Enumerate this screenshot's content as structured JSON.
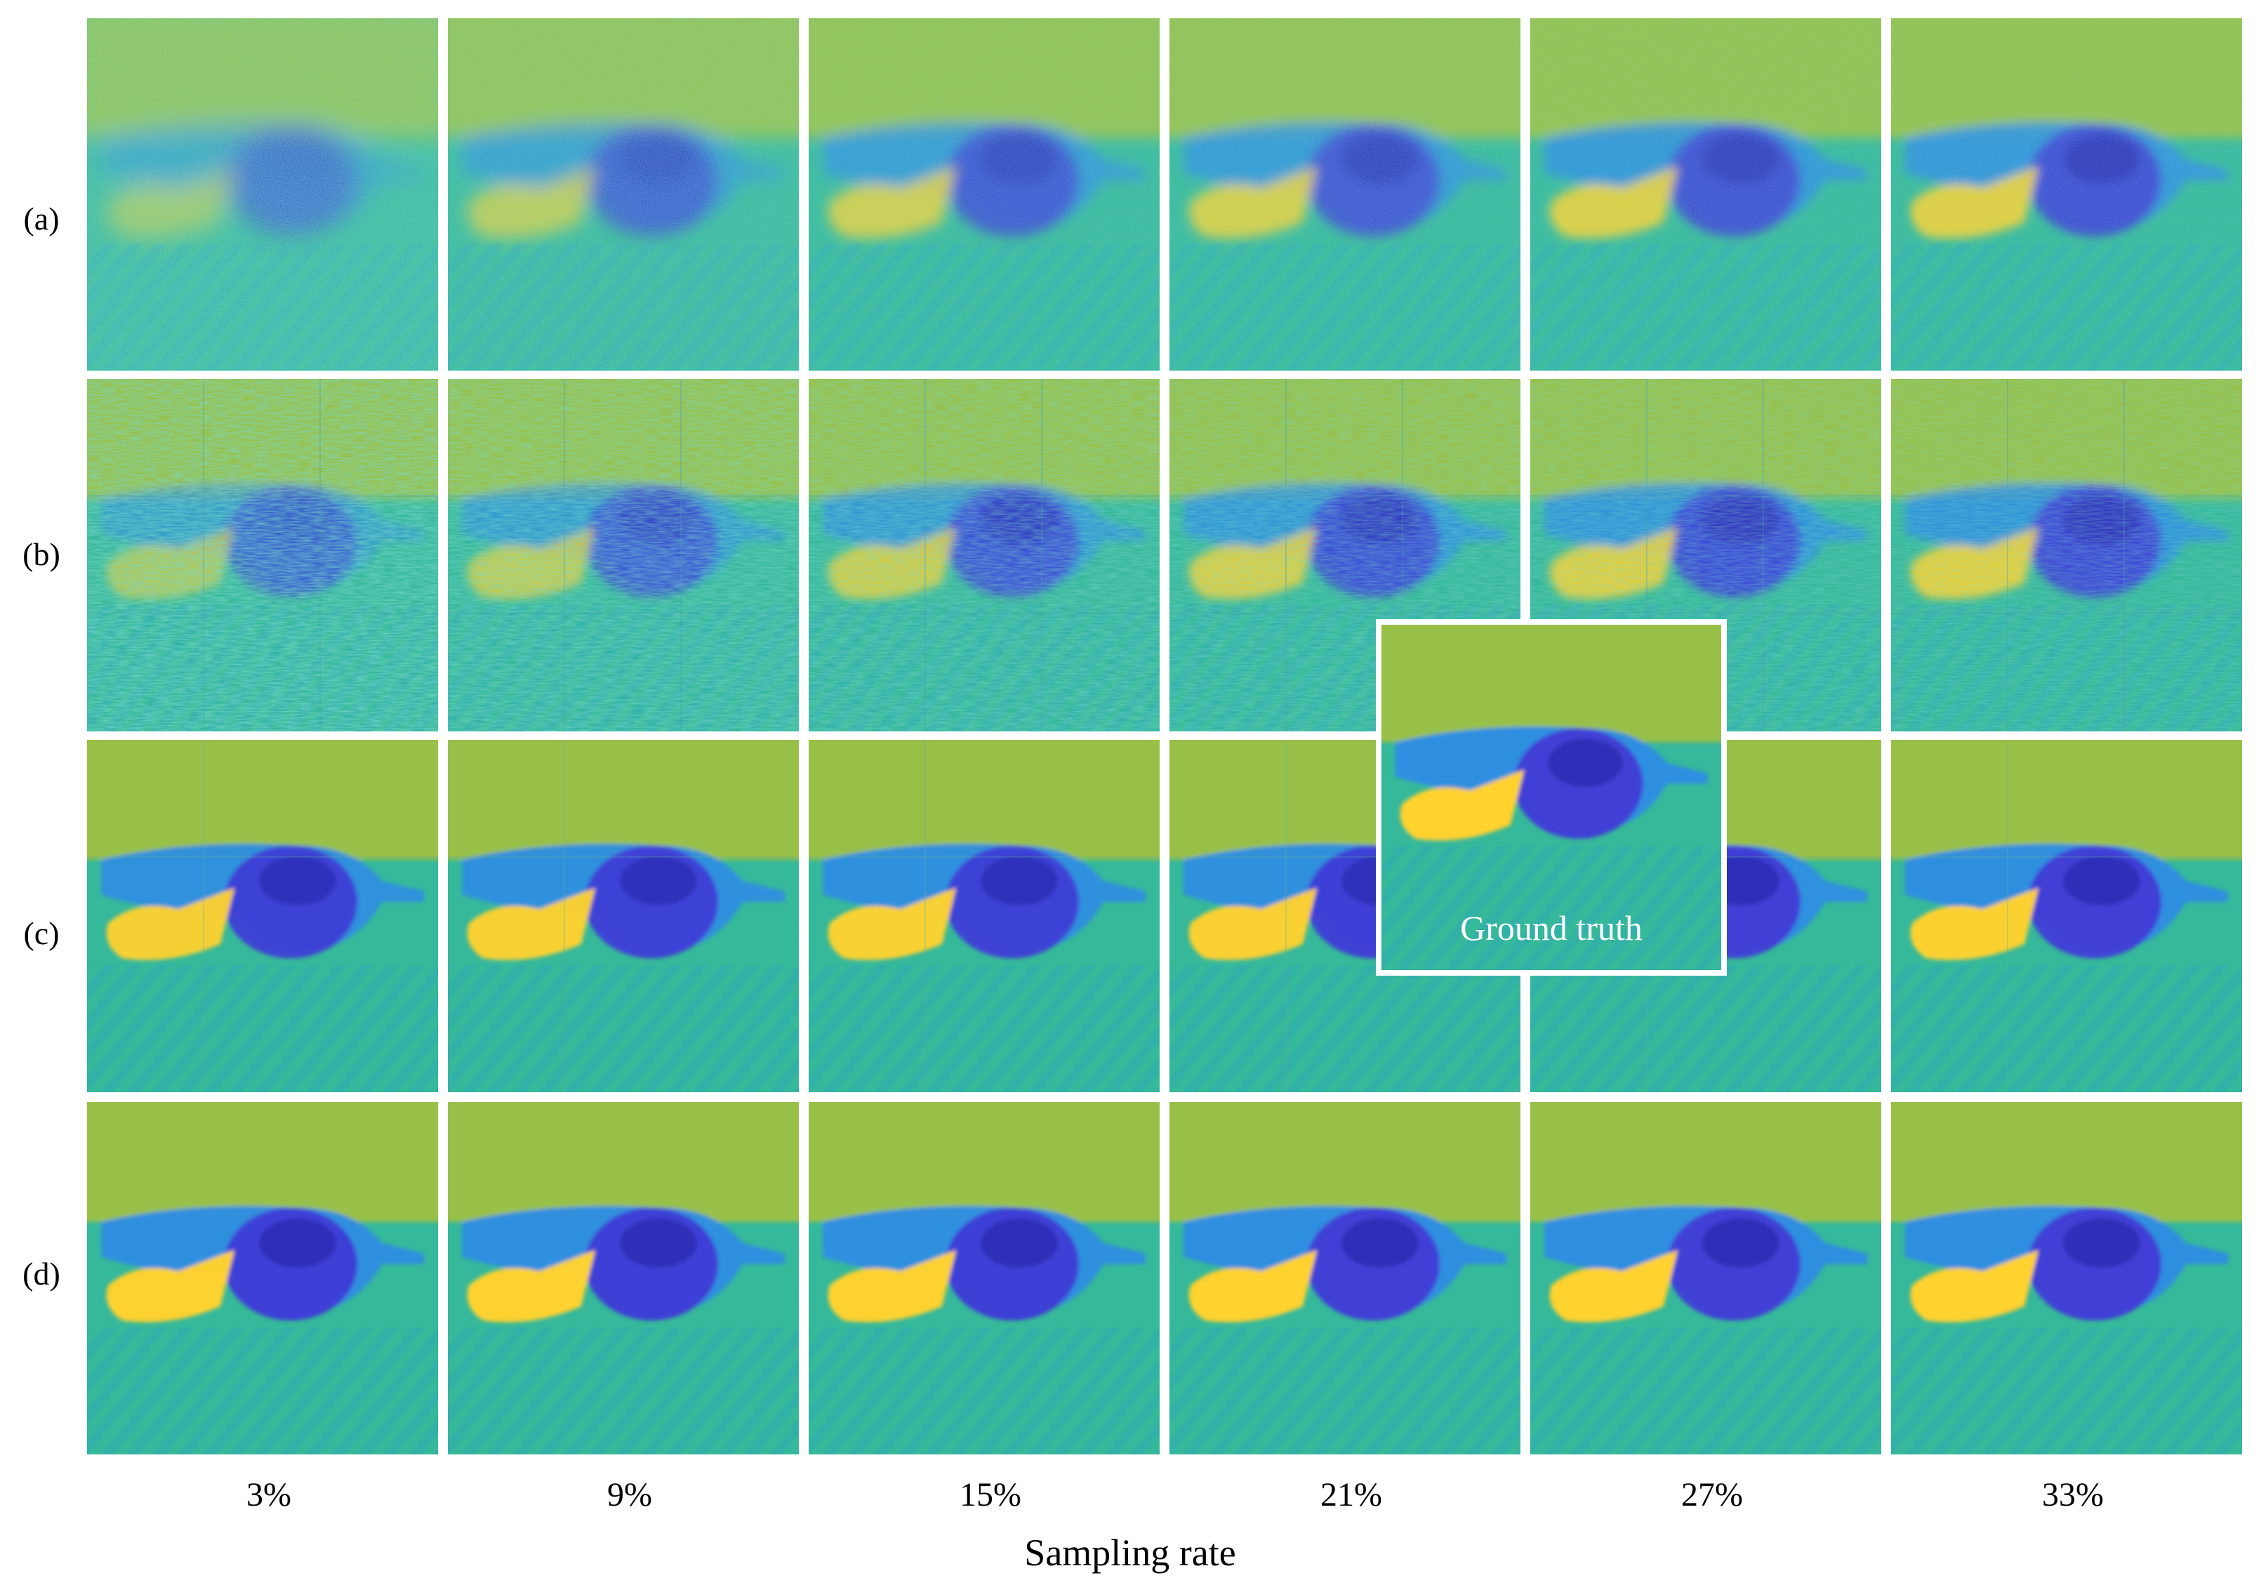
{
  "rows": [
    {
      "label": "(a)",
      "style": "noisy",
      "clarity": [
        0.15,
        0.45,
        0.65,
        0.7,
        0.78,
        0.82
      ]
    },
    {
      "label": "(b)",
      "style": "blocky",
      "clarity": [
        0.2,
        0.4,
        0.55,
        0.65,
        0.72,
        0.78
      ]
    },
    {
      "label": "(c)",
      "style": "smooth-grid",
      "clarity": [
        0.9,
        0.92,
        0.93,
        0.94,
        0.95,
        0.96
      ]
    },
    {
      "label": "(d)",
      "style": "smooth",
      "clarity": [
        0.97,
        0.98,
        0.98,
        0.99,
        0.99,
        0.99
      ]
    }
  ],
  "columns": [
    "3%",
    "9%",
    "15%",
    "21%",
    "27%",
    "33%"
  ],
  "x_axis_label": "Sampling rate",
  "ground_truth_label": "Ground truth",
  "colors": {
    "background_field": "#36b89a",
    "upper_field": "#a9c23a",
    "dark_blob": "#3f3fd6",
    "deep_blue": "#2a2ab0",
    "bright_blob": "#ffd22e",
    "mid_blue": "#2f8fe0"
  }
}
